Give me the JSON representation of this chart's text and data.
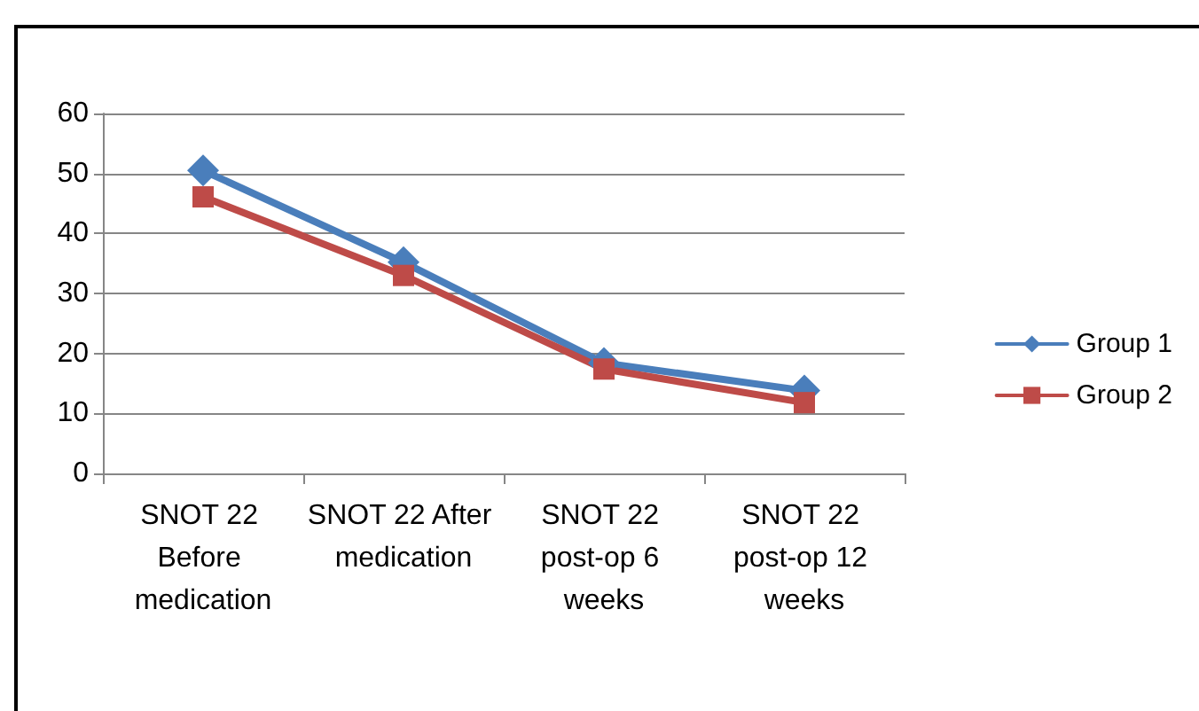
{
  "chart_data": {
    "type": "line",
    "categories": [
      "SNOT 22 Before medication",
      "SNOT 22 After medication",
      "SNOT 22 post-op 6 weeks",
      "SNOT 22 post-op 12 weeks"
    ],
    "series": [
      {
        "name": "Group 1",
        "color": "#4a7ebb",
        "marker": "diamond",
        "values": [
          50.5,
          35.2,
          18.4,
          13.8
        ]
      },
      {
        "name": "Group 2",
        "color": "#be4b48",
        "marker": "square",
        "values": [
          46.1,
          33,
          17.4,
          11.8
        ]
      }
    ],
    "ylim": [
      0,
      60
    ],
    "yticks": [
      0,
      10,
      20,
      30,
      40,
      50,
      60
    ],
    "grid": "y",
    "legend": "right",
    "line_style": "solid"
  }
}
